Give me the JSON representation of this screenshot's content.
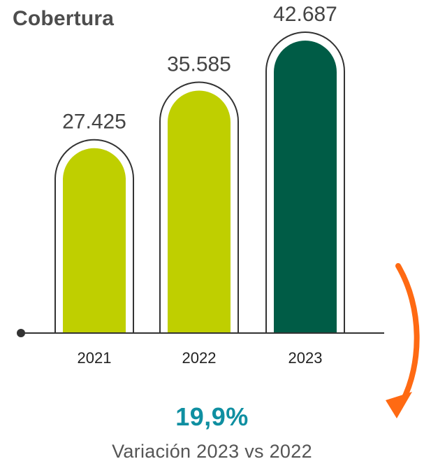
{
  "chart_data": {
    "type": "bar",
    "title": "Cobertura",
    "categories": [
      "2021",
      "2022",
      "2023"
    ],
    "values": [
      27425,
      35585,
      42687
    ],
    "value_labels": [
      "27.425",
      "35.585",
      "42.687"
    ],
    "xlabel": "",
    "ylabel": "",
    "ylim": [
      0,
      42687
    ],
    "grid": false,
    "bar_colors": [
      "#bfcf00",
      "#bfcf00",
      "#005c46"
    ],
    "axis_color": "#333333",
    "outline_color": "#333333",
    "arrow_color": "#ff6a13"
  },
  "variation": {
    "value": "19,9%",
    "label": "Variación 2023 vs 2022",
    "color": "#0f8fa1"
  }
}
